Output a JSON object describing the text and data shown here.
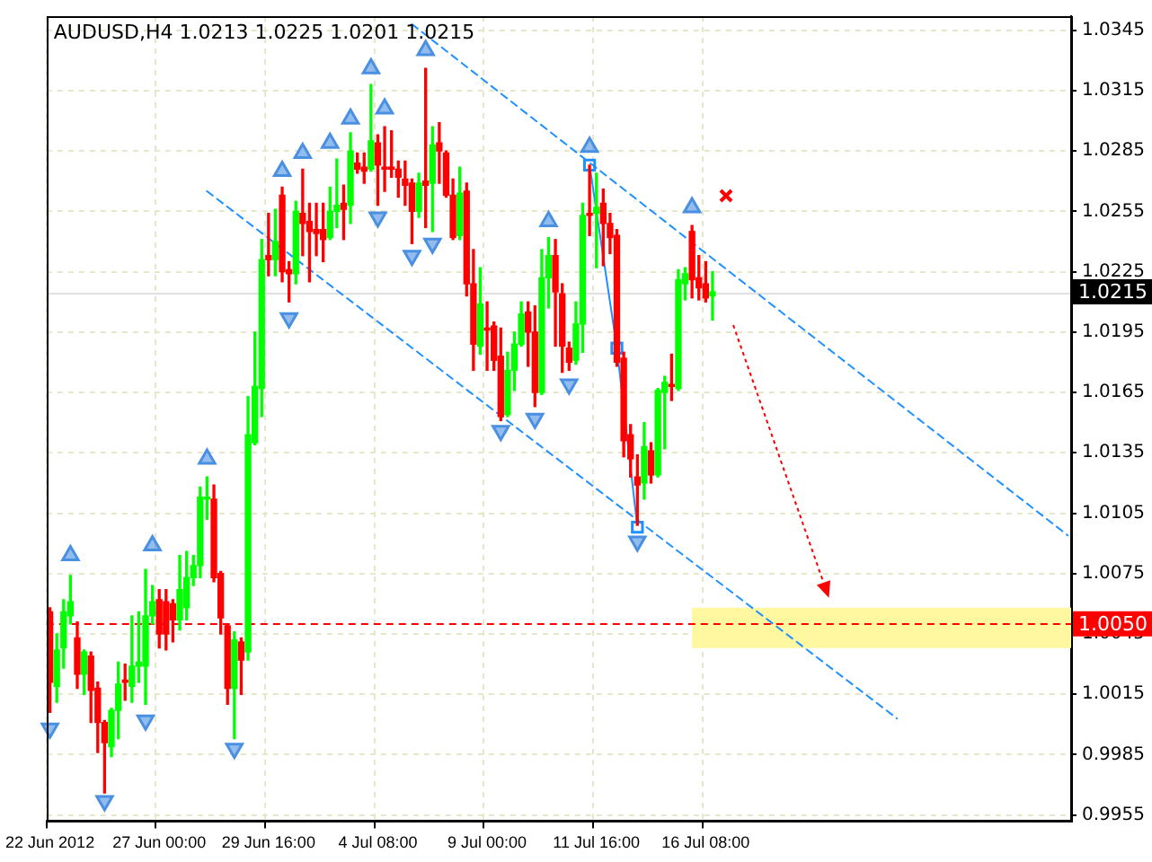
{
  "chart_data": {
    "type": "candlestick",
    "title": "AUDUSD,H4 1.0213 1.0225 1.0201 1.0215",
    "categories": [
      "22 Jun 2012",
      null,
      null,
      null,
      null,
      null,
      null,
      null,
      null,
      null,
      null,
      null,
      null,
      null,
      null,
      null,
      "27 Jun 00:00",
      null,
      null,
      null,
      null,
      null,
      null,
      null,
      null,
      null,
      null,
      null,
      null,
      null,
      null,
      null,
      "29 Jun 16:00",
      null,
      null,
      null,
      null,
      null,
      null,
      null,
      null,
      null,
      null,
      null,
      null,
      null,
      null,
      null,
      "4 Jul 08:00",
      null,
      null,
      null,
      null,
      null,
      null,
      null,
      null,
      null,
      null,
      null,
      null,
      null,
      null,
      null,
      "9 Jul 00:00",
      null,
      null,
      null,
      null,
      null,
      null,
      null,
      null,
      null,
      null,
      null,
      null,
      null,
      null,
      null,
      "11 Jul 16:00",
      null,
      null,
      null,
      null,
      null,
      null,
      null,
      null,
      null,
      null,
      null,
      null,
      null,
      null,
      null,
      "16 Jul 08:00",
      null,
      null,
      null,
      null,
      null,
      null,
      null,
      null,
      null,
      null,
      null,
      null,
      null,
      null,
      null,
      null,
      null,
      null,
      null,
      null,
      null,
      null,
      null,
      null,
      null,
      null,
      null,
      null,
      null,
      null,
      null,
      null,
      null,
      null,
      null,
      null,
      null,
      null,
      null,
      null,
      null,
      null,
      null,
      null,
      null,
      null,
      null,
      null,
      null,
      null,
      null,
      null,
      null
    ],
    "ohlc": [
      [
        1.0056,
        1.0058,
        1.0006,
        1.0021
      ],
      [
        1.0019,
        1.0045,
        1.0011,
        1.0037
      ],
      [
        1.0038,
        1.0062,
        1.0028,
        1.0056
      ],
      [
        1.0054,
        1.0074,
        1.005,
        1.0061
      ],
      [
        1.0043,
        1.0051,
        1.0018,
        1.0025
      ],
      [
        1.0025,
        1.0037,
        1.0015,
        1.0036
      ],
      [
        1.0034,
        1.0036,
        1.0001,
        1.0017
      ],
      [
        1.0018,
        1.0021,
        0.9986,
        1.0001
      ],
      [
        1.0001,
        1.0002,
        0.9966,
        0.9991
      ],
      [
        0.9989,
        1.0008,
        0.9984,
        1.0007
      ],
      [
        1.0007,
        1.0031,
        0.9993,
        1.002
      ],
      [
        1.0022,
        1.003,
        1.0012,
        1.0021
      ],
      [
        1.0019,
        1.0054,
        1.0011,
        1.0029
      ],
      [
        1.0029,
        1.0056,
        1.0021,
        1.0031
      ],
      [
        1.0029,
        1.0077,
        1.001,
        1.0054
      ],
      [
        1.0054,
        1.0069,
        1.005,
        1.0061
      ],
      [
        1.0062,
        1.0067,
        1.0038,
        1.0045
      ],
      [
        1.0061,
        1.0067,
        1.0037,
        1.0045
      ],
      [
        1.006,
        1.0062,
        1.0041,
        1.0052
      ],
      [
        1.0052,
        1.0084,
        1.0047,
        1.0067
      ],
      [
        1.0058,
        1.0086,
        1.0052,
        1.0073
      ],
      [
        1.0073,
        1.0084,
        1.0069,
        1.0079
      ],
      [
        1.0079,
        1.0118,
        1.0073,
        1.0113
      ],
      [
        1.0112,
        1.0123,
        1.0102,
        1.0113
      ],
      [
        1.0112,
        1.0119,
        1.0071,
        1.0073
      ],
      [
        1.0075,
        1.0076,
        1.0045,
        1.0053
      ],
      [
        1.0049,
        1.005,
        1.001,
        1.0018
      ],
      [
        1.0018,
        1.0046,
        0.9993,
        1.0042
      ],
      [
        1.0041,
        1.0043,
        1.0015,
        1.0032
      ],
      [
        1.0036,
        1.0163,
        1.0032,
        1.0144
      ],
      [
        1.014,
        1.0195,
        1.0139,
        1.0168
      ],
      [
        1.0167,
        1.0241,
        1.0153,
        1.0231
      ],
      [
        1.0233,
        1.0254,
        1.0223,
        1.0231
      ],
      [
        1.0231,
        1.0256,
        1.0223,
        1.024
      ],
      [
        1.0263,
        1.0267,
        1.022,
        1.0225
      ],
      [
        1.0226,
        1.023,
        1.021,
        1.0224
      ],
      [
        1.0224,
        1.026,
        1.0219,
        1.0255
      ],
      [
        1.0254,
        1.0276,
        1.0233,
        1.0249
      ],
      [
        1.025,
        1.0259,
        1.022,
        1.0245
      ],
      [
        1.0246,
        1.0259,
        1.0233,
        1.0244
      ],
      [
        1.0246,
        1.0259,
        1.023,
        1.0241
      ],
      [
        1.0242,
        1.0267,
        1.0241,
        1.0255
      ],
      [
        1.0255,
        1.0281,
        1.0247,
        1.0258
      ],
      [
        1.0259,
        1.0268,
        1.0241,
        1.0256
      ],
      [
        1.0258,
        1.0294,
        1.0249,
        1.0285
      ],
      [
        1.0279,
        1.0284,
        1.0274,
        1.0276
      ],
      [
        1.0277,
        1.0284,
        1.0269,
        1.0275
      ],
      [
        1.0276,
        1.0318,
        1.0275,
        1.029
      ],
      [
        1.0289,
        1.0293,
        1.0258,
        1.0278
      ],
      [
        1.0277,
        1.0297,
        1.0265,
        1.0276
      ],
      [
        1.0277,
        1.0295,
        1.0272,
        1.0276
      ],
      [
        1.0276,
        1.028,
        1.0262,
        1.0272
      ],
      [
        1.0271,
        1.028,
        1.0258,
        1.0268
      ],
      [
        1.0269,
        1.0271,
        1.0239,
        1.0255
      ],
      [
        1.0255,
        1.0274,
        1.0252,
        1.0269
      ],
      [
        1.027,
        1.0326,
        1.0247,
        1.0268
      ],
      [
        1.0269,
        1.0297,
        1.0245,
        1.0288
      ],
      [
        1.0289,
        1.0299,
        1.0269,
        1.0285
      ],
      [
        1.0284,
        1.0285,
        1.0262,
        1.0263
      ],
      [
        1.0263,
        1.0271,
        1.0241,
        1.0242
      ],
      [
        1.0243,
        1.0277,
        1.0241,
        1.0264
      ],
      [
        1.0265,
        1.0269,
        1.0213,
        1.0219
      ],
      [
        1.0219,
        1.0236,
        1.0176,
        1.0189
      ],
      [
        1.0188,
        1.0227,
        1.0184,
        1.0209
      ],
      [
        1.0197,
        1.021,
        1.0176,
        1.0196
      ],
      [
        1.0198,
        1.02,
        1.0176,
        1.0181
      ],
      [
        1.0183,
        1.0197,
        1.0151,
        1.0153
      ],
      [
        1.0154,
        1.0185,
        1.0153,
        1.0176
      ],
      [
        1.0176,
        1.0195,
        1.0166,
        1.0189
      ],
      [
        1.0189,
        1.021,
        1.0188,
        1.0204
      ],
      [
        1.0205,
        1.021,
        1.0178,
        1.0195
      ],
      [
        1.0195,
        1.0208,
        1.0158,
        1.0165
      ],
      [
        1.0165,
        1.0236,
        1.0164,
        1.0222
      ],
      [
        1.0222,
        1.0242,
        1.0207,
        1.0233
      ],
      [
        1.0233,
        1.0241,
        1.0188,
        1.0215
      ],
      [
        1.0214,
        1.0219,
        1.0175,
        1.0188
      ],
      [
        1.0187,
        1.019,
        1.0176,
        1.018
      ],
      [
        1.0181,
        1.021,
        1.0179,
        1.0199
      ],
      [
        1.0199,
        1.0259,
        1.0185,
        1.0253
      ],
      [
        1.0254,
        1.0278,
        1.0243,
        1.0253
      ],
      [
        1.0254,
        1.0274,
        1.0227,
        1.0257
      ],
      [
        1.0259,
        1.0266,
        1.0228,
        1.0249
      ],
      [
        1.0249,
        1.0254,
        1.0234,
        1.0242
      ],
      [
        1.0243,
        1.0246,
        1.0178,
        1.018
      ],
      [
        1.0182,
        1.0185,
        1.0133,
        1.0141
      ],
      [
        1.0144,
        1.0149,
        1.0123,
        1.0132
      ],
      [
        1.0123,
        1.0134,
        1.0099,
        1.0119
      ],
      [
        1.012,
        1.015,
        1.0112,
        1.0138
      ],
      [
        1.0136,
        1.014,
        1.012,
        1.0124
      ],
      [
        1.0124,
        1.0167,
        1.0123,
        1.0166
      ],
      [
        1.0165,
        1.0173,
        1.0137,
        1.017
      ],
      [
        1.0169,
        1.0184,
        1.0161,
        1.0168
      ],
      [
        1.0167,
        1.0226,
        1.0166,
        1.0221
      ],
      [
        1.0219,
        1.0227,
        1.0211,
        1.0224
      ],
      [
        1.0245,
        1.0248,
        1.0212,
        1.0221
      ],
      [
        1.0222,
        1.0233,
        1.0211,
        1.0217
      ],
      [
        1.0219,
        1.023,
        1.021,
        1.0212
      ],
      [
        1.0213,
        1.0225,
        1.0201,
        1.0215
      ],
      null,
      null,
      null,
      null,
      null,
      null,
      null,
      null,
      null,
      null,
      null,
      null,
      null,
      null,
      null,
      null,
      null,
      null,
      null,
      null,
      null,
      null,
      null,
      null,
      null,
      null,
      null,
      null,
      null,
      null,
      null,
      null,
      null,
      null,
      null,
      null,
      null,
      null,
      null,
      null,
      null,
      null,
      null,
      null,
      null,
      null,
      null,
      null,
      null,
      null,
      null,
      null
    ],
    "colors": [
      "#ff0000",
      "#00ff00",
      "#00ff00",
      "#00ff00",
      "#ff0000",
      "#00ff00",
      "#ff0000",
      "#ff0000",
      "#ff0000",
      "#00ff00",
      "#00ff00",
      "#ff0000",
      "#00ff00",
      "#00ff00",
      "#00ff00",
      "#00ff00",
      "#ff0000",
      "#ff0000",
      "#ff0000",
      "#00ff00",
      "#00ff00",
      "#00ff00",
      "#00ff00",
      "#00ff00",
      "#ff0000",
      "#ff0000",
      "#ff0000",
      "#00ff00",
      "#ff0000",
      "#00ff00",
      "#00ff00",
      "#00ff00",
      "#ff0000",
      "#00ff00",
      "#ff0000",
      "#ff0000",
      "#00ff00",
      "#ff0000",
      "#ff0000",
      "#ff0000",
      "#ff0000",
      "#00ff00",
      "#00ff00",
      "#ff0000",
      "#00ff00",
      "#ff0000",
      "#ff0000",
      "#00ff00",
      "#ff0000",
      "#ff0000",
      "#ff0000",
      "#ff0000",
      "#ff0000",
      "#ff0000",
      "#00ff00",
      "#ff0000",
      "#00ff00",
      "#ff0000",
      "#ff0000",
      "#ff0000",
      "#00ff00",
      "#ff0000",
      "#ff0000",
      "#00ff00",
      "#ff0000",
      "#ff0000",
      "#ff0000",
      "#00ff00",
      "#00ff00",
      "#00ff00",
      "#ff0000",
      "#ff0000",
      "#00ff00",
      "#00ff00",
      "#ff0000",
      "#ff0000",
      "#ff0000",
      "#00ff00",
      "#00ff00",
      "#ff0000",
      "#00ff00",
      "#ff0000",
      "#ff0000",
      "#ff0000",
      "#ff0000",
      "#ff0000",
      "#ff0000",
      "#00ff00",
      "#ff0000",
      "#00ff00",
      "#00ff00",
      "#ff0000",
      "#00ff00",
      "#00ff00",
      "#ff0000",
      "#ff0000",
      "#ff0000",
      "#00ff00",
      null,
      null,
      null,
      null,
      null,
      null,
      null,
      null,
      null,
      null,
      null,
      null,
      null,
      null,
      null,
      null,
      null,
      null,
      null,
      null,
      null,
      null,
      null,
      null,
      null,
      null,
      null,
      null,
      null,
      null,
      null,
      null,
      null,
      null,
      null,
      null,
      null,
      null,
      null,
      null,
      null,
      null,
      null,
      null,
      null,
      null,
      null,
      null,
      null,
      null,
      null,
      null
    ],
    "series": [
      {
        "type": "line",
        "color": "#1e90ff",
        "line_style": "dashed",
        "values": [
          null,
          null,
          null,
          null,
          null,
          null,
          null,
          null,
          null,
          null,
          null,
          null,
          null,
          null,
          null,
          null,
          null,
          null,
          null,
          null,
          null,
          null,
          null,
          null,
          null,
          null,
          null,
          null,
          null,
          null,
          null,
          null,
          null,
          null,
          null,
          null,
          null,
          null,
          null,
          null,
          null,
          null,
          null,
          null,
          null,
          null,
          null,
          null,
          null,
          null,
          null,
          null,
          null,
          1.0348,
          null,
          null,
          null,
          null,
          null,
          null,
          null,
          null,
          null,
          null,
          null,
          null,
          null,
          null,
          null,
          null,
          null,
          null,
          null,
          null,
          null,
          null,
          null,
          null,
          null,
          null,
          null,
          null,
          null,
          null,
          null,
          null,
          null,
          null,
          null,
          null,
          null,
          null,
          null,
          null,
          null,
          null,
          null,
          null,
          null,
          null,
          null,
          null,
          null,
          null,
          null,
          null,
          null,
          null,
          null,
          null,
          null,
          null,
          null,
          null,
          null,
          null,
          null,
          null,
          null,
          null,
          null,
          null,
          null,
          null,
          null,
          null,
          null,
          null,
          null,
          null,
          null,
          null,
          null,
          null,
          null,
          null,
          null,
          null,
          null,
          null,
          null,
          null,
          null,
          null,
          null,
          null,
          null,
          null,
          null,
          1.0094
        ]
      },
      {
        "type": "line",
        "color": "#1e90ff",
        "line_style": "dashed",
        "values": [
          null,
          null,
          null,
          null,
          null,
          null,
          null,
          null,
          null,
          null,
          null,
          null,
          null,
          null,
          null,
          null,
          null,
          null,
          null,
          null,
          null,
          null,
          null,
          1.0265,
          null,
          null,
          null,
          null,
          null,
          null,
          null,
          null,
          null,
          null,
          null,
          null,
          null,
          null,
          null,
          null,
          null,
          null,
          null,
          null,
          null,
          null,
          null,
          null,
          null,
          null,
          null,
          null,
          null,
          null,
          null,
          null,
          null,
          null,
          null,
          null,
          null,
          null,
          null,
          null,
          null,
          null,
          null,
          null,
          null,
          null,
          null,
          null,
          null,
          null,
          null,
          null,
          null,
          null,
          null,
          null,
          null,
          null,
          null,
          null,
          null,
          null,
          null,
          null,
          null,
          null,
          null,
          null,
          null,
          null,
          null,
          null,
          null,
          null,
          null,
          null,
          null,
          null,
          null,
          null,
          null,
          null,
          null,
          null,
          null,
          null,
          null,
          null,
          null,
          null,
          null,
          null,
          null,
          null,
          null,
          null,
          null,
          null,
          null,
          null,
          1.0003,
          null,
          null,
          null,
          null,
          null,
          null,
          null,
          null,
          null,
          null,
          null,
          null,
          null,
          null,
          null,
          null,
          null,
          null,
          null,
          null,
          null,
          null,
          null,
          null,
          null
        ]
      },
      {
        "type": "line",
        "color": "#1e90ff",
        "line_style": "solid",
        "marker": "square",
        "values": [
          null,
          null,
          null,
          null,
          null,
          null,
          null,
          null,
          null,
          null,
          null,
          null,
          null,
          null,
          null,
          null,
          null,
          null,
          null,
          null,
          null,
          null,
          null,
          null,
          null,
          null,
          null,
          null,
          null,
          null,
          null,
          null,
          null,
          null,
          null,
          null,
          null,
          null,
          null,
          null,
          null,
          null,
          null,
          null,
          null,
          null,
          null,
          null,
          null,
          null,
          null,
          null,
          null,
          null,
          null,
          null,
          null,
          null,
          null,
          null,
          null,
          null,
          null,
          null,
          null,
          null,
          null,
          null,
          null,
          null,
          null,
          null,
          null,
          null,
          null,
          null,
          null,
          null,
          null,
          1.0278,
          null,
          null,
          null,
          1.0187,
          null,
          null,
          1.0098,
          null,
          null,
          null,
          null,
          null,
          null,
          null,
          null,
          null,
          null,
          null,
          null,
          null,
          null,
          null,
          null,
          null,
          null,
          null,
          null,
          null,
          null,
          null,
          null,
          null,
          null,
          null,
          null,
          null,
          null,
          null,
          null,
          null,
          null,
          null,
          null,
          null,
          null,
          null,
          null,
          null,
          null,
          null,
          null,
          null,
          null,
          null,
          null,
          null,
          null,
          null,
          null,
          null,
          null,
          null,
          null,
          null,
          null,
          null,
          null,
          null,
          null,
          null
        ]
      },
      {
        "type": "scatter",
        "color": "#4a90e2",
        "marker": "triangle",
        "values": [
          null,
          null,
          null,
          1.0084,
          null,
          null,
          null,
          null,
          null,
          null,
          null,
          null,
          null,
          null,
          null,
          1.0089,
          null,
          null,
          null,
          null,
          null,
          null,
          null,
          1.0132,
          null,
          null,
          null,
          null,
          null,
          null,
          null,
          null,
          null,
          null,
          1.0275,
          null,
          null,
          1.0284,
          null,
          null,
          null,
          1.0289,
          null,
          null,
          1.0301,
          null,
          null,
          1.0326,
          null,
          1.0306,
          null,
          null,
          null,
          null,
          null,
          1.0335,
          null,
          null,
          null,
          null,
          null,
          null,
          null,
          null,
          null,
          null,
          null,
          null,
          null,
          null,
          null,
          null,
          null,
          1.025,
          null,
          null,
          null,
          null,
          null,
          1.0287,
          null,
          null,
          null,
          null,
          null,
          null,
          null,
          null,
          null,
          null,
          null,
          null,
          null,
          null,
          1.0257,
          null,
          null,
          null,
          null,
          null,
          null,
          null,
          null,
          null,
          null,
          null,
          null,
          null,
          null,
          null,
          null,
          null,
          null,
          null,
          null,
          null,
          null,
          null,
          null,
          null,
          null,
          null,
          null,
          null,
          null,
          null,
          null,
          null,
          null,
          null,
          null,
          null,
          null,
          null,
          null,
          null,
          null,
          null,
          null,
          null,
          null,
          null,
          null,
          null,
          null,
          null,
          null,
          null,
          null,
          null
        ]
      },
      {
        "type": "scatter",
        "color": "#4a90e2",
        "marker": "triangle",
        "values": [
          0.9998,
          null,
          null,
          null,
          null,
          null,
          null,
          null,
          0.9962,
          null,
          null,
          null,
          null,
          null,
          1.0002,
          null,
          null,
          null,
          null,
          null,
          null,
          null,
          null,
          null,
          null,
          null,
          null,
          0.9988,
          null,
          null,
          null,
          null,
          null,
          null,
          null,
          1.0202,
          null,
          null,
          null,
          null,
          null,
          null,
          null,
          null,
          null,
          null,
          null,
          null,
          1.0252,
          null,
          null,
          null,
          null,
          1.0233,
          null,
          null,
          1.0239,
          null,
          null,
          null,
          null,
          null,
          null,
          null,
          null,
          null,
          1.0146,
          null,
          null,
          null,
          null,
          1.0152,
          null,
          null,
          null,
          null,
          1.0169,
          null,
          null,
          null,
          null,
          null,
          null,
          null,
          null,
          null,
          1.0091,
          null,
          null,
          null,
          null,
          null,
          null,
          null,
          null,
          null,
          null,
          null,
          null,
          null,
          null,
          null,
          null,
          null,
          null,
          null,
          null,
          null,
          null,
          null,
          null,
          null,
          null,
          null,
          null,
          null,
          null,
          null,
          null,
          null,
          null,
          null,
          null,
          null,
          null,
          null,
          null,
          null,
          null,
          null,
          null,
          null,
          null,
          null,
          null,
          null,
          null,
          null,
          null,
          null,
          null,
          null,
          null,
          null,
          null,
          null,
          null,
          null,
          null,
          null
        ]
      }
    ],
    "ylim": [
      0.9952,
      1.0352
    ],
    "yticks": [
      0.9955,
      0.9985,
      1.0015,
      1.0045,
      1.0075,
      1.0105,
      1.0135,
      1.0165,
      1.0195,
      1.0225,
      1.0255,
      1.0285,
      1.0315,
      1.0345
    ],
    "grid": true,
    "ref_lines": [
      {
        "axis": "y",
        "value": 1.0215,
        "label": "1.0215",
        "color": "#000000",
        "line_style": "solid"
      },
      {
        "axis": "y",
        "value": 1.005,
        "label": "1.0050",
        "color": "#ff0000",
        "line_style": "dashed"
      }
    ],
    "bands": [
      {
        "axis": "y",
        "from": 1.0038,
        "to": 1.0058,
        "color": "#fff8a0"
      }
    ]
  }
}
